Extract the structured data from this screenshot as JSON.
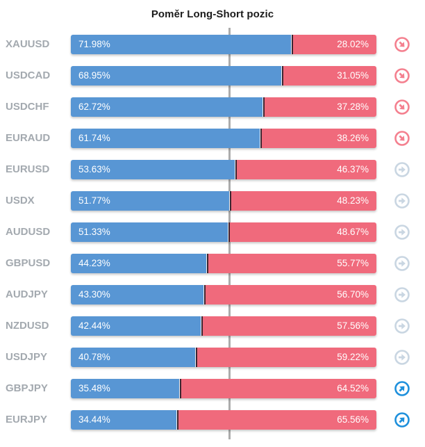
{
  "title": "Poměr Long-Short pozic",
  "chart_data": {
    "type": "bar",
    "orientation": "horizontal",
    "stacked": true,
    "title": "Poměr Long-Short pozic",
    "legend": "none",
    "axis": "none (values labeled on bars, gray reference line at 50%)",
    "categories": [
      "XAUUSD",
      "USDCAD",
      "USDCHF",
      "EURAUD",
      "EURUSD",
      "USDX",
      "AUDUSD",
      "GBPUSD",
      "AUDJPY",
      "NZDUSD",
      "USDJPY",
      "GBPJPY",
      "EURJPY"
    ],
    "series": [
      {
        "name": "Long",
        "color": "#5896d4",
        "values": [
          71.98,
          68.95,
          62.72,
          61.74,
          53.63,
          51.77,
          51.33,
          44.23,
          43.3,
          42.44,
          40.78,
          35.48,
          34.44
        ]
      },
      {
        "name": "Short",
        "color": "#f06a7c",
        "values": [
          28.02,
          31.05,
          37.28,
          38.26,
          46.37,
          48.23,
          48.67,
          55.77,
          56.7,
          57.56,
          59.22,
          64.52,
          65.56
        ]
      }
    ],
    "rows": [
      {
        "pair": "XAUUSD",
        "long_pct": 71.98,
        "long_label": "71.98%",
        "short_label": "28.02%",
        "trend": "down"
      },
      {
        "pair": "USDCAD",
        "long_pct": 68.95,
        "long_label": "68.95%",
        "short_label": "31.05%",
        "trend": "down"
      },
      {
        "pair": "USDCHF",
        "long_pct": 62.72,
        "long_label": "62.72%",
        "short_label": "37.28%",
        "trend": "down"
      },
      {
        "pair": "EURAUD",
        "long_pct": 61.74,
        "long_label": "61.74%",
        "short_label": "38.26%",
        "trend": "down"
      },
      {
        "pair": "EURUSD",
        "long_pct": 53.63,
        "long_label": "53.63%",
        "short_label": "46.37%",
        "trend": "flat"
      },
      {
        "pair": "USDX",
        "long_pct": 51.77,
        "long_label": "51.77%",
        "short_label": "48.23%",
        "trend": "flat"
      },
      {
        "pair": "AUDUSD",
        "long_pct": 51.33,
        "long_label": "51.33%",
        "short_label": "48.67%",
        "trend": "flat"
      },
      {
        "pair": "GBPUSD",
        "long_pct": 44.23,
        "long_label": "44.23%",
        "short_label": "55.77%",
        "trend": "flat"
      },
      {
        "pair": "AUDJPY",
        "long_pct": 43.3,
        "long_label": "43.30%",
        "short_label": "56.70%",
        "trend": "flat"
      },
      {
        "pair": "NZDUSD",
        "long_pct": 42.44,
        "long_label": "42.44%",
        "short_label": "57.56%",
        "trend": "flat"
      },
      {
        "pair": "USDJPY",
        "long_pct": 40.78,
        "long_label": "40.78%",
        "short_label": "59.22%",
        "trend": "flat"
      },
      {
        "pair": "GBPJPY",
        "long_pct": 35.48,
        "long_label": "35.48%",
        "short_label": "64.52%",
        "trend": "up"
      },
      {
        "pair": "EURJPY",
        "long_pct": 34.44,
        "long_label": "34.44%",
        "short_label": "65.56%",
        "trend": "up"
      }
    ],
    "colors": {
      "long": "#5896d4",
      "short": "#f06a7c",
      "segment_divider": "#3b2430",
      "center_line": "#acacac",
      "pair_label": "#a3a9af",
      "trend_down": "#f4808f",
      "trend_flat": "#c9d6e2",
      "trend_up": "#1e90dc"
    }
  }
}
